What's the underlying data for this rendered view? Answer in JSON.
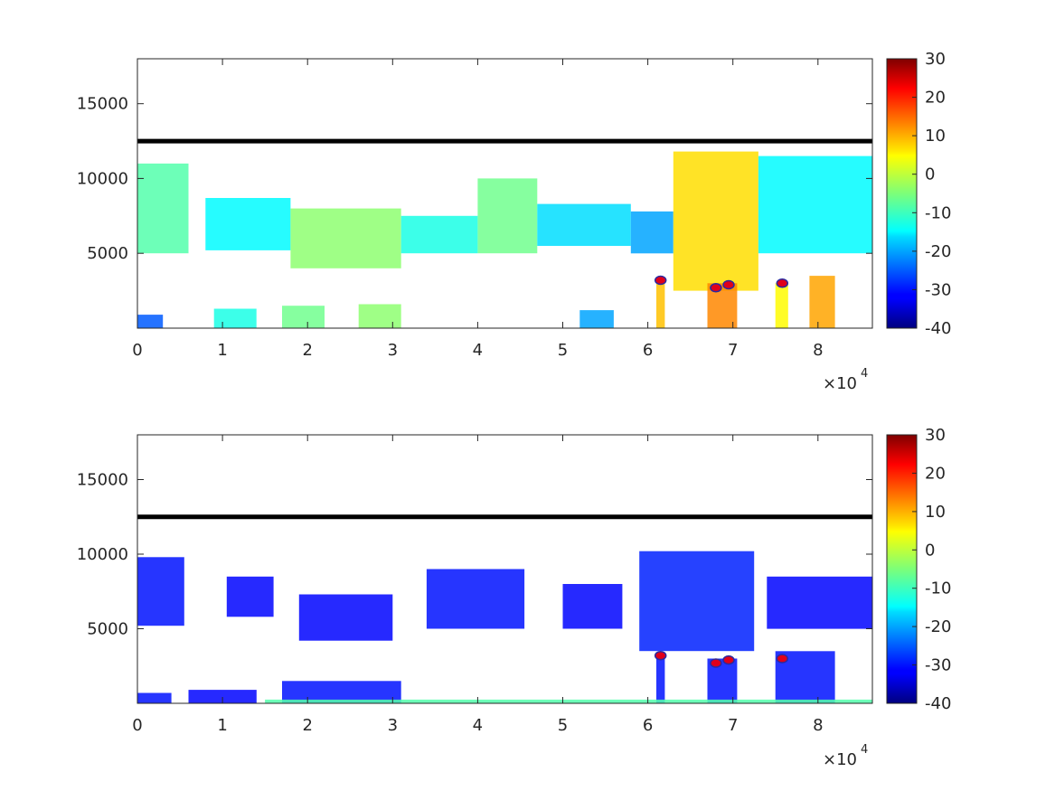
{
  "chart_data": [
    {
      "type": "heatmap",
      "panel": "top",
      "title": "",
      "xlabel": "",
      "ylabel": "",
      "xlim": [
        0,
        86400
      ],
      "ylim": [
        0,
        18000
      ],
      "x_ticks": [
        0,
        10000,
        20000,
        30000,
        40000,
        50000,
        60000,
        70000,
        80000
      ],
      "x_tick_labels": [
        "0",
        "1",
        "2",
        "3",
        "4",
        "5",
        "6",
        "7",
        "8"
      ],
      "x_multiplier": {
        "base": "×10",
        "exponent": "4"
      },
      "y_ticks": [
        5000,
        10000,
        15000
      ],
      "y_tick_labels": [
        "5000",
        "10000",
        "15000"
      ],
      "colorbar": {
        "range": [
          -40,
          30
        ],
        "ticks": [
          -40,
          -30,
          -20,
          -10,
          0,
          10,
          20,
          30
        ],
        "tick_labels": [
          "-40",
          "-30",
          "-20",
          "-10",
          "0",
          "10",
          "20",
          "30"
        ],
        "colormap": "jet"
      },
      "line": {
        "y": 12500,
        "color": "#000000"
      },
      "markers": [
        {
          "x": 61500,
          "y": 3200
        },
        {
          "x": 68000,
          "y": 2700
        },
        {
          "x": 69500,
          "y": 2900
        },
        {
          "x": 75800,
          "y": 3000
        }
      ],
      "marker_fill": "#e0001a",
      "marker_edge": "#2a2aa0",
      "regions": [
        {
          "x0": 0,
          "x1": 6000,
          "y0": 5000,
          "y1": 11000,
          "value": -8
        },
        {
          "x0": 8000,
          "x1": 18000,
          "y0": 5200,
          "y1": 8700,
          "value": -14
        },
        {
          "x0": 18000,
          "x1": 31000,
          "y0": 4000,
          "y1": 8000,
          "value": -4
        },
        {
          "x0": 31000,
          "x1": 40000,
          "y0": 5000,
          "y1": 7500,
          "value": -12
        },
        {
          "x0": 40000,
          "x1": 47000,
          "y0": 5000,
          "y1": 10000,
          "value": -6
        },
        {
          "x0": 47000,
          "x1": 58000,
          "y0": 5500,
          "y1": 8300,
          "value": -16
        },
        {
          "x0": 58000,
          "x1": 63000,
          "y0": 5000,
          "y1": 7800,
          "value": -20
        },
        {
          "x0": 63000,
          "x1": 73000,
          "y0": 2500,
          "y1": 11800,
          "value": 6
        },
        {
          "x0": 73000,
          "x1": 86400,
          "y0": 5000,
          "y1": 11500,
          "value": -14
        },
        {
          "x0": 61000,
          "x1": 62000,
          "y0": 0,
          "y1": 3000,
          "value": 8
        },
        {
          "x0": 67000,
          "x1": 70500,
          "y0": 0,
          "y1": 3000,
          "value": 12
        },
        {
          "x0": 75000,
          "x1": 76500,
          "y0": 0,
          "y1": 3000,
          "value": 4
        },
        {
          "x0": 79000,
          "x1": 82000,
          "y0": 0,
          "y1": 3500,
          "value": 10
        },
        {
          "x0": 0,
          "x1": 3000,
          "y0": 0,
          "y1": 900,
          "value": -25
        },
        {
          "x0": 9000,
          "x1": 14000,
          "y0": 0,
          "y1": 1300,
          "value": -12
        },
        {
          "x0": 17000,
          "x1": 22000,
          "y0": 0,
          "y1": 1500,
          "value": -6
        },
        {
          "x0": 26000,
          "x1": 31000,
          "y0": 0,
          "y1": 1600,
          "value": -4
        },
        {
          "x0": 52000,
          "x1": 56000,
          "y0": 0,
          "y1": 1200,
          "value": -20
        }
      ]
    },
    {
      "type": "heatmap",
      "panel": "bottom",
      "title": "",
      "xlabel": "",
      "ylabel": "",
      "xlim": [
        0,
        86400
      ],
      "ylim": [
        0,
        18000
      ],
      "x_ticks": [
        0,
        10000,
        20000,
        30000,
        40000,
        50000,
        60000,
        70000,
        80000
      ],
      "x_tick_labels": [
        "0",
        "1",
        "2",
        "3",
        "4",
        "5",
        "6",
        "7",
        "8"
      ],
      "x_multiplier": {
        "base": "×10",
        "exponent": "4"
      },
      "y_ticks": [
        5000,
        10000,
        15000
      ],
      "y_tick_labels": [
        "5000",
        "10000",
        "15000"
      ],
      "colorbar": {
        "range": [
          -40,
          30
        ],
        "ticks": [
          -40,
          -30,
          -20,
          -10,
          0,
          10,
          20,
          30
        ],
        "tick_labels": [
          "-40",
          "-30",
          "-20",
          "-10",
          "0",
          "10",
          "20",
          "30"
        ],
        "colormap": "jet"
      },
      "line": {
        "y": 12500,
        "color": "#000000"
      },
      "markers": [
        {
          "x": 61500,
          "y": 3200
        },
        {
          "x": 68000,
          "y": 2700
        },
        {
          "x": 69500,
          "y": 2900
        },
        {
          "x": 75800,
          "y": 3000
        }
      ],
      "marker_fill": "#e0001a",
      "marker_edge": "#2a2aa0",
      "regions": [
        {
          "x0": 0,
          "x1": 5500,
          "y0": 5200,
          "y1": 9800,
          "value": -30
        },
        {
          "x0": 10500,
          "x1": 16000,
          "y0": 5800,
          "y1": 8500,
          "value": -31
        },
        {
          "x0": 19000,
          "x1": 30000,
          "y0": 4200,
          "y1": 7300,
          "value": -31
        },
        {
          "x0": 34000,
          "x1": 45500,
          "y0": 5000,
          "y1": 9000,
          "value": -30
        },
        {
          "x0": 50000,
          "x1": 57000,
          "y0": 5000,
          "y1": 8000,
          "value": -31
        },
        {
          "x0": 59000,
          "x1": 72500,
          "y0": 3500,
          "y1": 10200,
          "value": -29
        },
        {
          "x0": 74000,
          "x1": 86400,
          "y0": 5000,
          "y1": 8500,
          "value": -31
        },
        {
          "x0": 0,
          "x1": 4000,
          "y0": 0,
          "y1": 700,
          "value": -30
        },
        {
          "x0": 6000,
          "x1": 14000,
          "y0": 0,
          "y1": 900,
          "value": -31
        },
        {
          "x0": 17000,
          "x1": 31000,
          "y0": 0,
          "y1": 1500,
          "value": -30
        },
        {
          "x0": 61000,
          "x1": 62000,
          "y0": 0,
          "y1": 3000,
          "value": -30
        },
        {
          "x0": 67000,
          "x1": 70500,
          "y0": 0,
          "y1": 3000,
          "value": -30
        },
        {
          "x0": 75000,
          "x1": 82000,
          "y0": 0,
          "y1": 3500,
          "value": -30
        },
        {
          "x0": 15000,
          "x1": 86400,
          "y0": 0,
          "y1": 250,
          "value": -8
        }
      ]
    }
  ]
}
